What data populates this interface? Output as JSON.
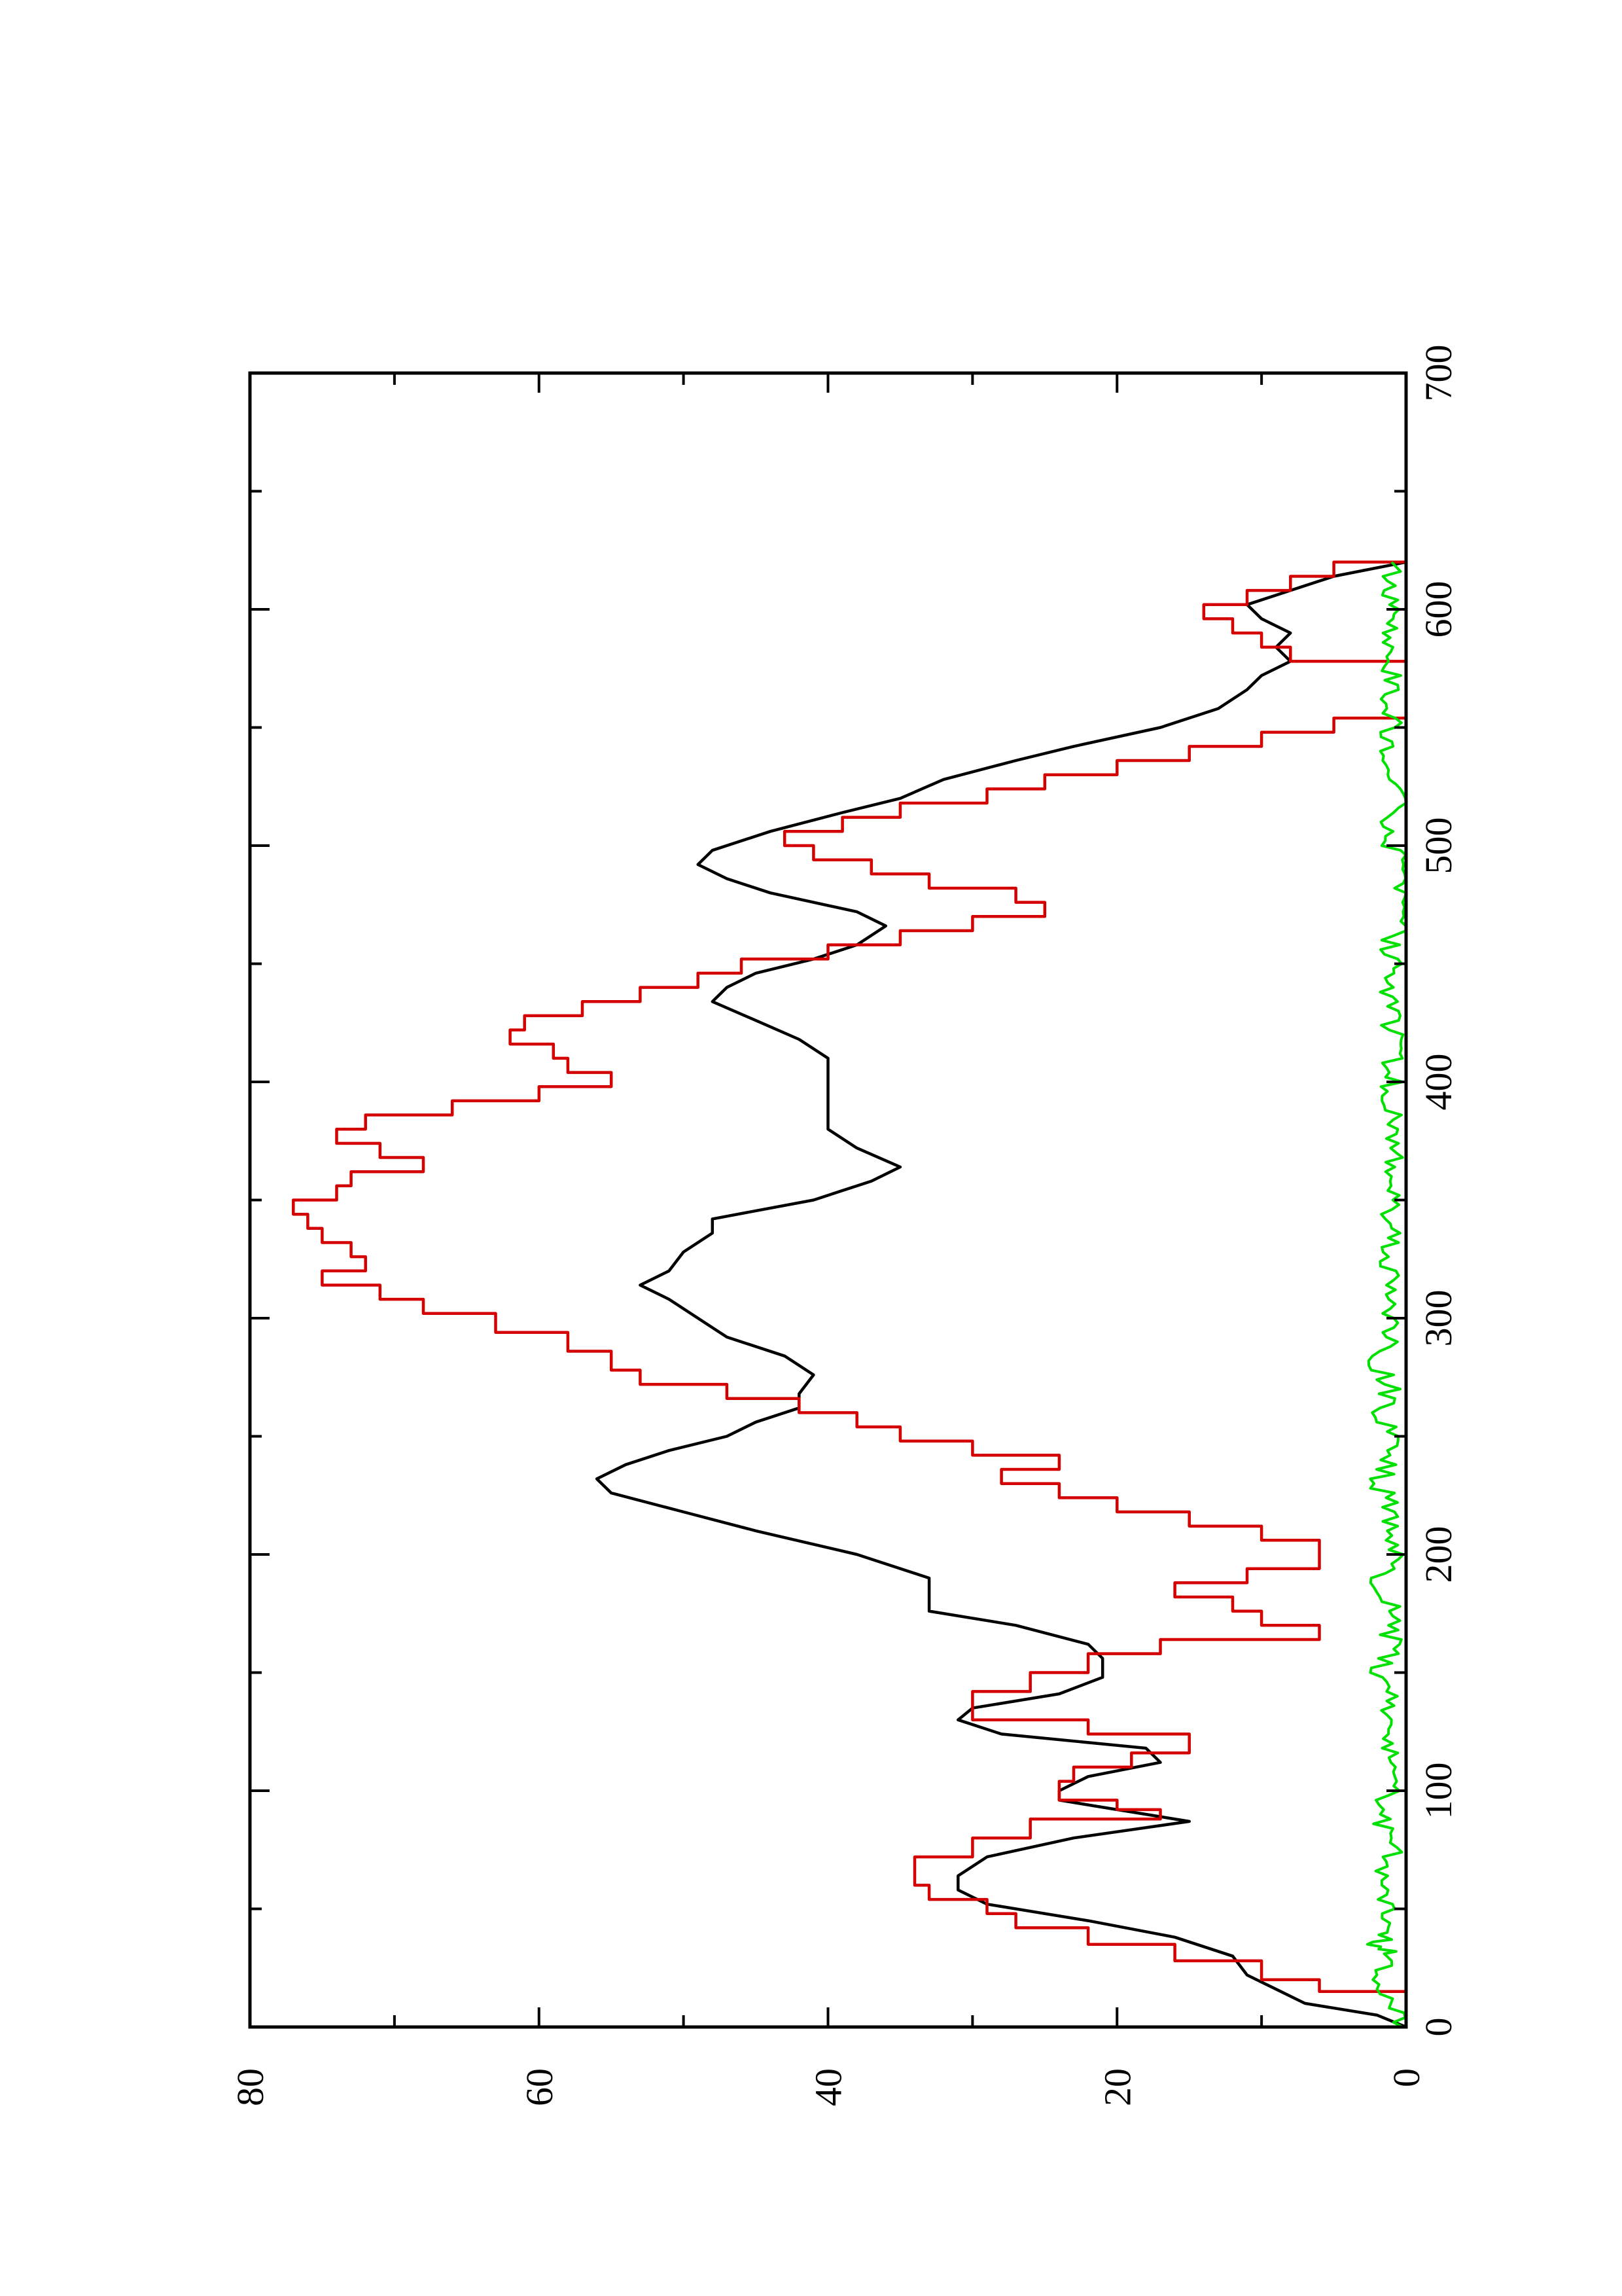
{
  "chart_data": {
    "type": "line",
    "orientation": "rotated-90-ccw",
    "title": "",
    "xlabel": "",
    "ylabel": "",
    "xlim": [
      0,
      700
    ],
    "ylim": [
      0,
      80
    ],
    "x_ticks": [
      {
        "value": 0,
        "label": "0"
      },
      {
        "value": 100,
        "label": "100"
      },
      {
        "value": 200,
        "label": "200"
      },
      {
        "value": 300,
        "label": "300"
      },
      {
        "value": 400,
        "label": "400"
      },
      {
        "value": 500,
        "label": "500"
      },
      {
        "value": 600,
        "label": "600"
      },
      {
        "value": 700,
        "label": "700"
      }
    ],
    "y_ticks": [
      {
        "value": 0,
        "label": "0"
      },
      {
        "value": 20,
        "label": "20"
      },
      {
        "value": 40,
        "label": "40"
      },
      {
        "value": 60,
        "label": "60"
      },
      {
        "value": 80,
        "label": "80"
      }
    ],
    "grid": false,
    "legend": "none",
    "series": [
      {
        "color": "#000000",
        "style": "smooth",
        "points": [
          [
            0,
            0
          ],
          [
            5,
            2
          ],
          [
            10,
            7
          ],
          [
            16,
            9
          ],
          [
            22,
            11
          ],
          [
            30,
            12
          ],
          [
            38,
            16
          ],
          [
            45,
            22
          ],
          [
            52,
            29
          ],
          [
            58,
            31
          ],
          [
            64,
            31
          ],
          [
            72,
            29
          ],
          [
            80,
            23
          ],
          [
            87,
            15
          ],
          [
            92,
            20
          ],
          [
            96,
            24
          ],
          [
            100,
            24
          ],
          [
            106,
            22
          ],
          [
            112,
            17
          ],
          [
            118,
            18
          ],
          [
            124,
            28
          ],
          [
            130,
            31
          ],
          [
            135,
            30
          ],
          [
            141,
            24
          ],
          [
            148,
            21
          ],
          [
            156,
            21
          ],
          [
            162,
            22
          ],
          [
            170,
            27
          ],
          [
            176,
            33
          ],
          [
            182,
            33
          ],
          [
            190,
            33
          ],
          [
            200,
            38
          ],
          [
            210,
            45
          ],
          [
            218,
            50
          ],
          [
            226,
            55
          ],
          [
            232,
            56
          ],
          [
            238,
            54
          ],
          [
            244,
            51
          ],
          [
            250,
            47
          ],
          [
            256,
            45
          ],
          [
            262,
            42
          ],
          [
            268,
            42
          ],
          [
            276,
            41
          ],
          [
            284,
            43
          ],
          [
            292,
            47
          ],
          [
            300,
            49
          ],
          [
            308,
            51
          ],
          [
            314,
            53
          ],
          [
            320,
            51
          ],
          [
            328,
            50
          ],
          [
            336,
            48
          ],
          [
            342,
            48
          ],
          [
            350,
            41
          ],
          [
            358,
            37
          ],
          [
            364,
            35
          ],
          [
            372,
            38
          ],
          [
            380,
            40
          ],
          [
            386,
            40
          ],
          [
            394,
            40
          ],
          [
            402,
            40
          ],
          [
            410,
            40
          ],
          [
            418,
            42
          ],
          [
            426,
            45
          ],
          [
            434,
            48
          ],
          [
            440,
            47
          ],
          [
            446,
            45
          ],
          [
            452,
            41
          ],
          [
            458,
            38
          ],
          [
            466,
            36
          ],
          [
            472,
            38
          ],
          [
            480,
            44
          ],
          [
            486,
            47
          ],
          [
            492,
            49
          ],
          [
            498,
            48
          ],
          [
            506,
            44
          ],
          [
            514,
            39
          ],
          [
            520,
            35
          ],
          [
            528,
            32
          ],
          [
            536,
            27
          ],
          [
            542,
            23
          ],
          [
            550,
            17
          ],
          [
            558,
            13
          ],
          [
            566,
            11
          ],
          [
            572,
            10
          ],
          [
            578,
            8
          ],
          [
            584,
            9
          ],
          [
            590,
            8
          ],
          [
            596,
            10
          ],
          [
            602,
            11
          ],
          [
            608,
            8
          ],
          [
            614,
            5
          ],
          [
            620,
            0
          ]
        ]
      },
      {
        "color": "#d40000",
        "style": "step",
        "points": [
          [
            0,
            0
          ],
          [
            10,
            0
          ],
          [
            15,
            6
          ],
          [
            20,
            10
          ],
          [
            28,
            16
          ],
          [
            35,
            22
          ],
          [
            42,
            27
          ],
          [
            48,
            29
          ],
          [
            54,
            33
          ],
          [
            60,
            34
          ],
          [
            66,
            34
          ],
          [
            72,
            30
          ],
          [
            80,
            26
          ],
          [
            88,
            17
          ],
          [
            92,
            20
          ],
          [
            96,
            24
          ],
          [
            104,
            23
          ],
          [
            110,
            19
          ],
          [
            116,
            15
          ],
          [
            124,
            22
          ],
          [
            130,
            30
          ],
          [
            136,
            30
          ],
          [
            142,
            26
          ],
          [
            150,
            22
          ],
          [
            158,
            17
          ],
          [
            164,
            6
          ],
          [
            170,
            10
          ],
          [
            176,
            12
          ],
          [
            182,
            16
          ],
          [
            188,
            11
          ],
          [
            194,
            6
          ],
          [
            200,
            6
          ],
          [
            206,
            10
          ],
          [
            212,
            15
          ],
          [
            218,
            20
          ],
          [
            224,
            24
          ],
          [
            230,
            28
          ],
          [
            236,
            24
          ],
          [
            242,
            30
          ],
          [
            248,
            35
          ],
          [
            254,
            38
          ],
          [
            260,
            42
          ],
          [
            266,
            47
          ],
          [
            272,
            53
          ],
          [
            278,
            55
          ],
          [
            286,
            58
          ],
          [
            294,
            63
          ],
          [
            302,
            68
          ],
          [
            308,
            71
          ],
          [
            314,
            75
          ],
          [
            320,
            72
          ],
          [
            326,
            73
          ],
          [
            332,
            75
          ],
          [
            338,
            76
          ],
          [
            344,
            77
          ],
          [
            350,
            74
          ],
          [
            356,
            73
          ],
          [
            362,
            68
          ],
          [
            368,
            71
          ],
          [
            374,
            74
          ],
          [
            380,
            72
          ],
          [
            386,
            66
          ],
          [
            392,
            60
          ],
          [
            398,
            55
          ],
          [
            404,
            58
          ],
          [
            410,
            59
          ],
          [
            416,
            62
          ],
          [
            422,
            61
          ],
          [
            428,
            57
          ],
          [
            434,
            53
          ],
          [
            440,
            49
          ],
          [
            446,
            46
          ],
          [
            452,
            40
          ],
          [
            458,
            35
          ],
          [
            464,
            30
          ],
          [
            470,
            25
          ],
          [
            476,
            27
          ],
          [
            482,
            33
          ],
          [
            488,
            37
          ],
          [
            494,
            41
          ],
          [
            500,
            43
          ],
          [
            506,
            39
          ],
          [
            512,
            35
          ],
          [
            518,
            29
          ],
          [
            524,
            25
          ],
          [
            530,
            20
          ],
          [
            536,
            15
          ],
          [
            542,
            10
          ],
          [
            548,
            5
          ],
          [
            554,
            0
          ],
          [
            560,
            0
          ],
          [
            566,
            0
          ],
          [
            572,
            0
          ],
          [
            578,
            8
          ],
          [
            584,
            10
          ],
          [
            590,
            12
          ],
          [
            596,
            14
          ],
          [
            602,
            11
          ],
          [
            608,
            8
          ],
          [
            614,
            5
          ],
          [
            620,
            0
          ]
        ]
      },
      {
        "color": "#00e000",
        "style": "noisy",
        "points": [
          [
            0,
            0
          ],
          [
            10,
            1
          ],
          [
            20,
            2
          ],
          [
            30,
            1
          ],
          [
            35,
            2
          ],
          [
            40,
            1
          ],
          [
            50,
            1
          ],
          [
            60,
            2
          ],
          [
            70,
            1
          ],
          [
            80,
            1
          ],
          [
            90,
            2
          ],
          [
            100,
            1
          ],
          [
            110,
            1
          ],
          [
            120,
            1
          ],
          [
            130,
            1
          ],
          [
            140,
            1
          ],
          [
            150,
            2
          ],
          [
            160,
            1
          ],
          [
            170,
            1
          ],
          [
            180,
            1
          ],
          [
            190,
            2
          ],
          [
            200,
            1
          ],
          [
            210,
            1
          ],
          [
            220,
            1
          ],
          [
            230,
            2
          ],
          [
            240,
            1
          ],
          [
            250,
            1
          ],
          [
            260,
            2
          ],
          [
            270,
            1
          ],
          [
            280,
            2
          ],
          [
            290,
            1
          ],
          [
            300,
            1
          ],
          [
            310,
            1
          ],
          [
            320,
            1
          ],
          [
            330,
            1
          ],
          [
            340,
            1
          ],
          [
            350,
            1
          ],
          [
            360,
            1
          ],
          [
            370,
            1
          ],
          [
            380,
            1
          ],
          [
            390,
            1
          ],
          [
            400,
            1
          ],
          [
            410,
            1
          ],
          [
            420,
            1
          ],
          [
            430,
            1
          ],
          [
            440,
            1
          ],
          [
            450,
            1
          ],
          [
            460,
            1
          ],
          [
            470,
            0
          ],
          [
            480,
            0
          ],
          [
            490,
            0
          ],
          [
            500,
            1
          ],
          [
            510,
            1
          ],
          [
            520,
            0
          ],
          [
            530,
            1
          ],
          [
            540,
            1
          ],
          [
            550,
            1
          ],
          [
            560,
            1
          ],
          [
            570,
            1
          ],
          [
            580,
            1
          ],
          [
            590,
            1
          ],
          [
            600,
            1
          ],
          [
            610,
            1
          ],
          [
            620,
            1
          ]
        ]
      }
    ]
  }
}
